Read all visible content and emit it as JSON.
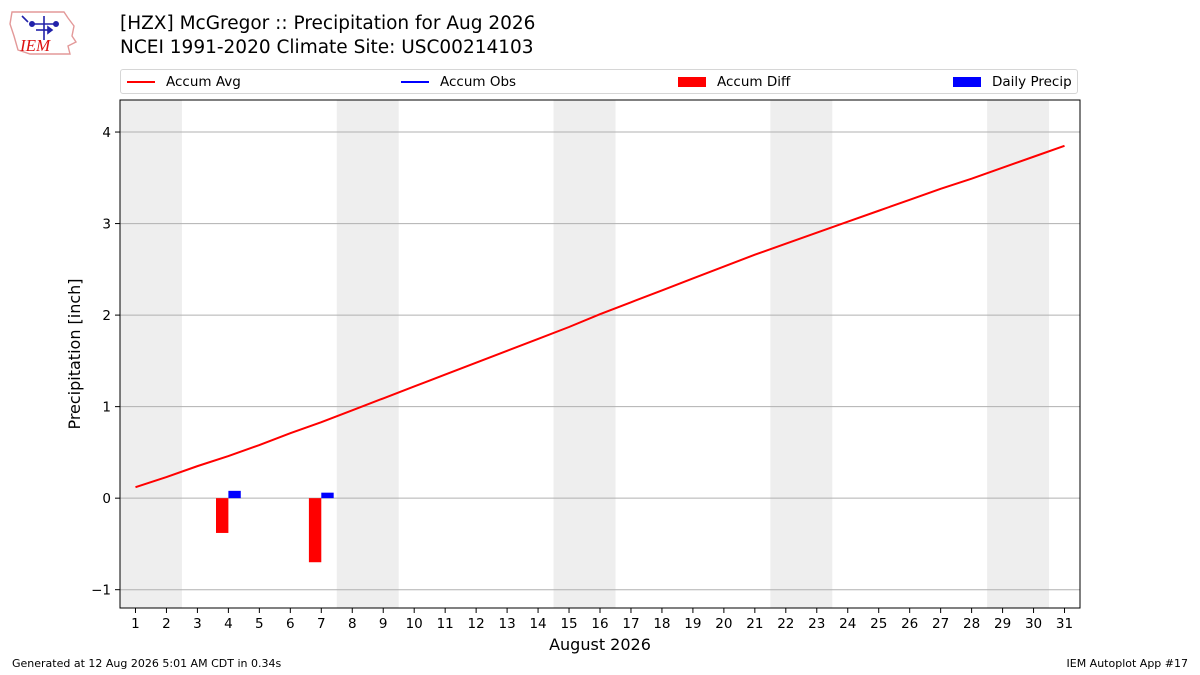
{
  "header": {
    "title_line1": "[HZX] McGregor :: Precipitation for Aug 2026",
    "title_line2": "NCEI 1991-2020 Climate Site: USC00214103"
  },
  "logo": {
    "text": "IEM",
    "icon": "iem-weather-station-logo"
  },
  "legend": [
    {
      "label": "Accum Avg",
      "kind": "line",
      "color": "#ff0000"
    },
    {
      "label": "Accum Obs",
      "kind": "line",
      "color": "#0000ff"
    },
    {
      "label": "Accum Diff",
      "kind": "box",
      "color": "#ff0000"
    },
    {
      "label": "Daily Precip",
      "kind": "box",
      "color": "#0000ff"
    }
  ],
  "footer": {
    "left": "Generated at 12 Aug 2026 5:01 AM CDT in 0.34s",
    "right": "IEM Autoplot App #17"
  },
  "chart_data": {
    "type": "bar",
    "xlabel": "August 2026",
    "ylabel": "Precipitation [inch]",
    "xlim": [
      0.5,
      31.5
    ],
    "ylim": [
      -1.2,
      4.35
    ],
    "yticks": [
      -1,
      0,
      1,
      2,
      3,
      4
    ],
    "ytick_labels": [
      "−1",
      "0",
      "1",
      "2",
      "3",
      "4"
    ],
    "x": [
      1,
      2,
      3,
      4,
      5,
      6,
      7,
      8,
      9,
      10,
      11,
      12,
      13,
      14,
      15,
      16,
      17,
      18,
      19,
      20,
      21,
      22,
      23,
      24,
      25,
      26,
      27,
      28,
      29,
      30,
      31
    ],
    "weekend_bands": [
      [
        0.5,
        2.5
      ],
      [
        7.5,
        9.5
      ],
      [
        14.5,
        16.5
      ],
      [
        21.5,
        23.5
      ],
      [
        28.5,
        30.5
      ]
    ],
    "grid": "y",
    "series": [
      {
        "name": "Accum Avg",
        "type": "line",
        "color": "#ff0000",
        "x": [
          1,
          2,
          3,
          4,
          5,
          6,
          7,
          8,
          9,
          10,
          11,
          12,
          13,
          14,
          15,
          16,
          17,
          18,
          19,
          20,
          21,
          22,
          23,
          24,
          25,
          26,
          27,
          28,
          29,
          30,
          31
        ],
        "values": [
          0.12,
          0.23,
          0.35,
          0.46,
          0.58,
          0.71,
          0.83,
          0.96,
          1.09,
          1.22,
          1.35,
          1.48,
          1.61,
          1.74,
          1.87,
          2.01,
          2.14,
          2.27,
          2.4,
          2.53,
          2.66,
          2.78,
          2.9,
          3.02,
          3.14,
          3.26,
          3.38,
          3.49,
          3.61,
          3.73,
          3.85
        ]
      },
      {
        "name": "Accum Diff",
        "type": "bar",
        "color": "#ff0000",
        "offset": -0.2,
        "x": [
          4,
          7
        ],
        "values": [
          -0.38,
          -0.7
        ]
      },
      {
        "name": "Daily Precip",
        "type": "bar",
        "color": "#0000ff",
        "offset": 0.2,
        "x": [
          4,
          7
        ],
        "values": [
          0.08,
          0.06
        ]
      }
    ]
  }
}
